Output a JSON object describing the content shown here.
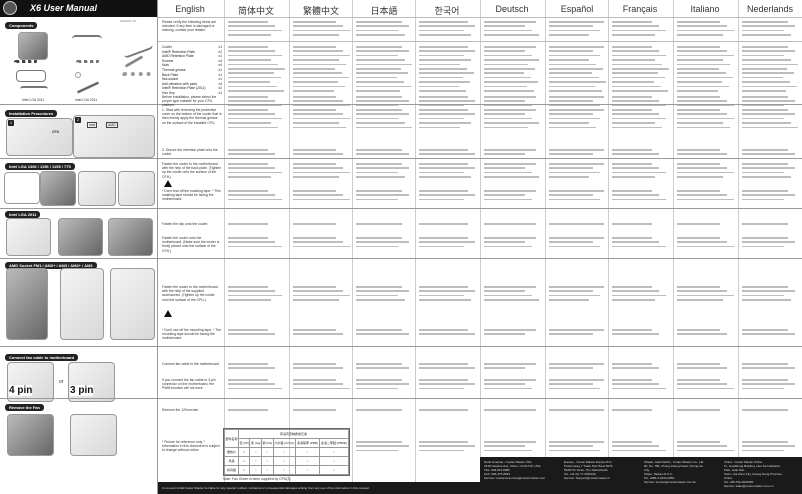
{
  "header": {
    "brand": "COOLER MASTER",
    "title": "X6 User Manual",
    "code": "1002007-1P"
  },
  "languages": [
    "English",
    "简体中文",
    "繁體中文",
    "日本語",
    "한국어",
    "Deutsch",
    "Español",
    "Français",
    "Italiano",
    "Nederlands"
  ],
  "sections": {
    "components": "Components",
    "installation": "Installation Procedures",
    "intel_1366": "Intel LGA 1366 / 1156 / 1155 / 775",
    "intel_2011": "Intel LGA 2011",
    "amd": "AMD Socket FM1 / AM3+ / AM3 / AM2+ / AM2",
    "connect": "Connect fan cable to motherboard",
    "remove": "Remove the Fan"
  },
  "left_labels": {
    "pin4": "4 pin",
    "pin3": "3 pin",
    "or": "or",
    "socket_a": "Intel LGA 2011",
    "socket_b": "Intel LGA 2011",
    "cpu": "CPU",
    "intel": "intel",
    "amd": "AMD"
  },
  "english": {
    "intro": "Please verify the following items are included. If any item is damaged or missing, contact your retailer.",
    "components": [
      {
        "label": "Cooler",
        "qty": "x1"
      },
      {
        "label": "Intel® Retention Plate",
        "qty": "x2"
      },
      {
        "label": "AMD Retention Plate",
        "qty": "x1"
      },
      {
        "label": "Screws",
        "qty": "x4"
      },
      {
        "label": "Nuts",
        "qty": "x4"
      },
      {
        "label": "Thermal grease",
        "qty": "x1"
      },
      {
        "label": "Back Plate",
        "qty": "x1"
      },
      {
        "label": "Nut-socket",
        "qty": "x1"
      },
      {
        "label": "Anti-vibration with pads",
        "qty": "x4"
      },
      {
        "label": "Intel® Retention Plate (2011)",
        "qty": "x2"
      },
      {
        "label": "Hex Key",
        "qty": "x1"
      }
    ],
    "before_install": "Before installation, please select the proper type suitable for your CPU platform.",
    "step1": "1. Start with removing the protective cover on the bottom of the cooler that is then evenly apply the thermal grease on the surface of the installed CPU.",
    "step2": "2. Secure the retention plate onto the cooler.",
    "intel_a": "Fasten the cooler to the motherboard with the help of the back plate. (Tighten up the cooler onto the surface of the CPU.)",
    "warning": "* Don't tear off the masking tape. * This masking tape should be facing the motherboard.",
    "clip": "Fasten the clip onto the cooler.",
    "intel_2011": "Fasten the cooler onto the motherboard. (Make sure the cooler is firmly placed onto the surface of the CPU.)",
    "amd": "Fasten the cooler to the motherboard with the help of the supplied accessories. (Tighten up the cooler onto the surface of the CPU.)",
    "amd_note": "* Don't use off the mounting tape. * The mounting tape should be facing the motherboard.",
    "connect": "Connect fan cable to the motherboard",
    "connect_note": "If you connect the fan cable to 3-pin connector on the motherboard, the PWM function will not work.",
    "remove": "Remove the 120mm fan",
    "note": "* Picture for reference only. * Information in this document is subject to change without notice."
  },
  "rohs": {
    "title": "有毒有害物质或元素",
    "col0": "部件名称",
    "cols": [
      "铅 (Pb)",
      "汞 (Hg)",
      "镉 (Cd)",
      "六价铬 (Cr(VI))",
      "多溴联苯 (PBB)",
      "多溴二苯醚 (PBDE)"
    ],
    "rows": [
      {
        "name": "散热片",
        "vals": [
          "×",
          "○",
          "○",
          "○",
          "○",
          "○"
        ]
      },
      {
        "name": "风扇",
        "vals": [
          "×",
          "○",
          "○",
          "○",
          "○",
          "○"
        ]
      },
      {
        "name": "扣具组",
        "vals": [
          "×",
          "○",
          "○",
          "○",
          "○",
          "○"
        ]
      }
    ],
    "note": "Note: Fan Green is been supplied by CPU(2)"
  },
  "footer": {
    "disclaimer": "In no event shall Cooler Master be liable for any special, indirect, incidental or consequential damages arising from any use of the information in this manual.",
    "contacts": [
      {
        "region": "North America - Cooler Master USA",
        "lines": [
          "4418 Giustine Ave, Chino, CA 91710, USA",
          "TEL: 909-821-8080",
          "FAX: 909-375-8033",
          "Service: Customerservice@coolermaster.com"
        ]
      },
      {
        "region": "Europe - Cooler Master Europe B.V.",
        "lines": [
          "Prodomweg 7 Trade Port West 5075",
          "5928 NV Venlo, The Netherlands",
          "Tel: +31 (0) 77-3260310",
          "Service: Support@coolermaster.nl"
        ]
      },
      {
        "region": "Taiwan, Asia Pacific - Cooler Master Co., Ltd.",
        "lines": [
          "9F, No. 786, Chung-Cheng Road, Chung-Ho City,",
          "Taipei, Taiwan R.O.C.",
          "Tel: +886-2-3234-0050",
          "Service: service@coolermaster.com.tw"
        ]
      },
      {
        "region": "China - Cooler Master China",
        "lines": [
          "Fl., HuaSheng Building, Hua Tai Industrial Park, Huai Nan",
          "Town, Hui Zhou City, Guang Dong Province, China",
          "Tel: +86-752-2634050",
          "Service: sales@coolermaster.com.cn"
        ]
      }
    ]
  }
}
